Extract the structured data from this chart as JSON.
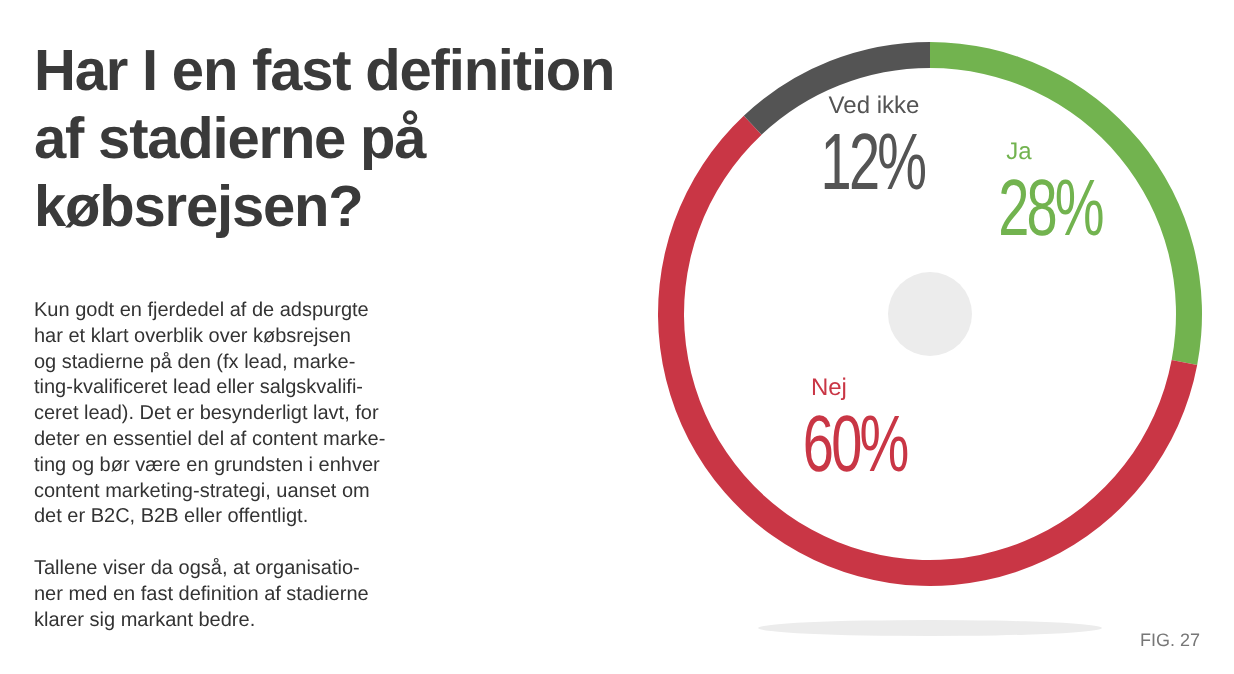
{
  "chart_data": {
    "type": "donut",
    "title": "Har I en fast definition\naf stadierne på\nkøbsrejsen?",
    "categories": [
      "Ja",
      "Nej",
      "Ved ikke"
    ],
    "values": [
      28,
      60,
      12
    ],
    "colors": [
      "#72b34f",
      "#c93645",
      "#545454"
    ],
    "value_labels": [
      "28%",
      "60%",
      "12%"
    ],
    "annotations": [
      "Kun godt en fjerdedel af de adspurgte\nhar et klart overblik over købsrejsen\nog stadierne på den (fx lead, marke-\nting-kvalificeret lead eller salgskvalifi-\nceret lead). Det er besynderligt lavt, for\ndeter en essentiel del af content marke-\nting og bør være en grundsten i enhver\ncontent marketing-strategi, uanset om\ndet er B2C, B2B eller offentligt.",
      "Tallene viser da også, at organisatio-\nner med en fast definition af stadierne\nklarer sig markant bedre.",
      "FIG. 27"
    ]
  }
}
